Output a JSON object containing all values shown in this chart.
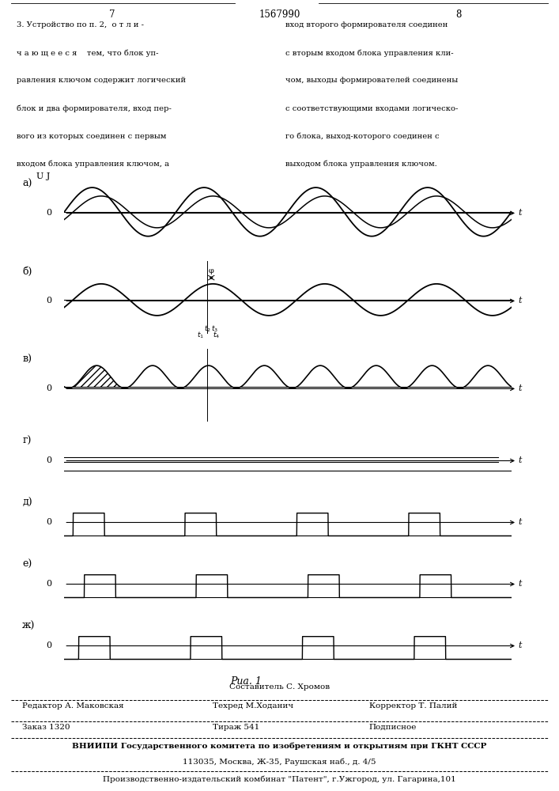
{
  "page_numbers": [
    "7",
    "1567990",
    "8"
  ],
  "left_text": [
    "3. Устройство по п. 2,  о т л и -",
    "ч а ю щ е е с я    тем, что блок уп-",
    "равления ключом содержит логический",
    "блок и два формирователя, вход пер-",
    "вого из которых соединен с первым",
    "входом блока управления ключом, а"
  ],
  "right_text": [
    "вход второго формирователя соединен",
    "с вторым входом блока управления кли-",
    "чом, выходы формирователей соединены",
    "с соответствующими входами логическо-",
    "го блока, выход-которого соединен с",
    "выходом блока управления ключом."
  ],
  "fig_label": "Риа. 1",
  "footer_line1": "Составитель С. Хромов",
  "footer_line2_left": "Редактор А. Маковская",
  "footer_line2_mid": "Техред М.Ходанич",
  "footer_line2_right": "Корректор Т. Палий",
  "footer_line3_left": "Заказ 1320",
  "footer_line3_mid": "Тираж 541",
  "footer_line3_right": "Подписное",
  "footer_line4": "ВНИИПИ Государственного комитета по изобретениям и открытиям при ГКНТ СССР",
  "footer_line5": "113035, Москва, Ж-35, Раушская наб., д. 4/5",
  "footer_line6": "Производственно-издательский комбинат \"Патент\", г.Ужгород, ул. Гагарина,101",
  "subplot_labels": [
    "а)",
    "б)",
    "в)",
    "г)",
    "д)",
    "е)",
    "ж)"
  ],
  "phi": 0.5,
  "n_cycles": 4,
  "sq_duty": 0.28,
  "sq_period": 1.0
}
